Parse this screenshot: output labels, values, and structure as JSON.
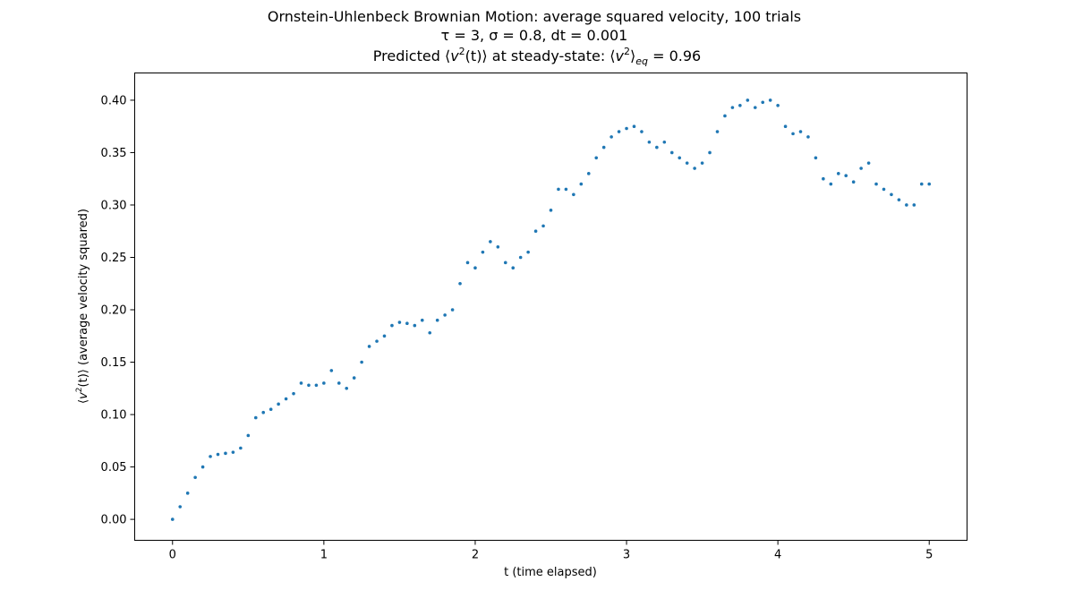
{
  "chart_data": {
    "type": "scatter",
    "title_lines": [
      "Ornstein-Uhlenbeck Brownian Motion: average squared velocity, 100 trials",
      "τ = 3, σ = 0.8, dt = 0.001"
    ],
    "title_line3": {
      "prefix": "Predicted ⟨",
      "v1": "v",
      "sup1": "2",
      "mid": "(t)⟩ at steady-state: ⟨",
      "v2": "v",
      "sup2": "2",
      "close": "⟩",
      "sub": "eq",
      "suffix": " = 0.96"
    },
    "xlabel": "t (time elapsed)",
    "ylabel": {
      "open": "⟨",
      "v": "v",
      "sup": "2",
      "rest": "(t)⟩ (average velocity squared)"
    },
    "xlim": [
      -0.25,
      5.25
    ],
    "ylim": [
      -0.02,
      0.426
    ],
    "x_ticks": [
      0,
      1,
      2,
      3,
      4,
      5
    ],
    "x_tick_labels": [
      "0",
      "1",
      "2",
      "3",
      "4",
      "5"
    ],
    "y_ticks": [
      0.0,
      0.05,
      0.1,
      0.15,
      0.2,
      0.25,
      0.3,
      0.35,
      0.4
    ],
    "y_tick_labels": [
      "0.00",
      "0.05",
      "0.10",
      "0.15",
      "0.20",
      "0.25",
      "0.30",
      "0.35",
      "0.40"
    ],
    "grid": false,
    "marker_color": "#1f77b4",
    "series": [
      {
        "x": [
          0,
          0.05,
          0.1,
          0.15,
          0.2,
          0.25,
          0.3,
          0.35,
          0.4,
          0.45,
          0.5,
          0.55,
          0.6,
          0.65,
          0.7,
          0.75,
          0.8,
          0.85,
          0.9,
          0.95,
          1.0,
          1.05,
          1.1,
          1.15,
          1.2,
          1.25,
          1.3,
          1.35,
          1.4,
          1.45,
          1.5,
          1.55,
          1.6,
          1.65,
          1.7,
          1.75,
          1.8,
          1.85,
          1.9,
          1.95,
          2.0,
          2.05,
          2.1,
          2.15,
          2.2,
          2.25,
          2.3,
          2.35,
          2.4,
          2.45,
          2.5,
          2.55,
          2.6,
          2.65,
          2.7,
          2.75,
          2.8,
          2.85,
          2.9,
          2.95,
          3.0,
          3.05,
          3.1,
          3.15,
          3.2,
          3.25,
          3.3,
          3.35,
          3.4,
          3.45,
          3.5,
          3.55,
          3.6,
          3.65,
          3.7,
          3.75,
          3.8,
          3.85,
          3.9,
          3.95,
          4.0,
          4.05,
          4.1,
          4.15,
          4.2,
          4.25,
          4.3,
          4.35,
          4.4,
          4.45,
          4.5,
          4.55,
          4.6,
          4.65,
          4.7,
          4.75,
          4.8,
          4.85,
          4.9,
          4.95,
          5.0
        ],
        "y": [
          0.0,
          0.012,
          0.025,
          0.04,
          0.05,
          0.06,
          0.062,
          0.063,
          0.064,
          0.068,
          0.08,
          0.097,
          0.102,
          0.105,
          0.11,
          0.115,
          0.12,
          0.13,
          0.128,
          0.128,
          0.13,
          0.142,
          0.13,
          0.125,
          0.135,
          0.15,
          0.165,
          0.17,
          0.175,
          0.185,
          0.188,
          0.187,
          0.185,
          0.19,
          0.178,
          0.19,
          0.195,
          0.2,
          0.225,
          0.245,
          0.24,
          0.255,
          0.265,
          0.26,
          0.245,
          0.24,
          0.25,
          0.255,
          0.275,
          0.28,
          0.295,
          0.315,
          0.315,
          0.31,
          0.32,
          0.33,
          0.345,
          0.355,
          0.365,
          0.37,
          0.373,
          0.375,
          0.37,
          0.36,
          0.355,
          0.36,
          0.35,
          0.345,
          0.34,
          0.335,
          0.34,
          0.35,
          0.37,
          0.385,
          0.393,
          0.395,
          0.4,
          0.393,
          0.398,
          0.4,
          0.395,
          0.375,
          0.368,
          0.37,
          0.365,
          0.345,
          0.325,
          0.32,
          0.33,
          0.328,
          0.322,
          0.335,
          0.34,
          0.32,
          0.315,
          0.31,
          0.305,
          0.3,
          0.3,
          0.32,
          0.32
        ]
      }
    ]
  }
}
